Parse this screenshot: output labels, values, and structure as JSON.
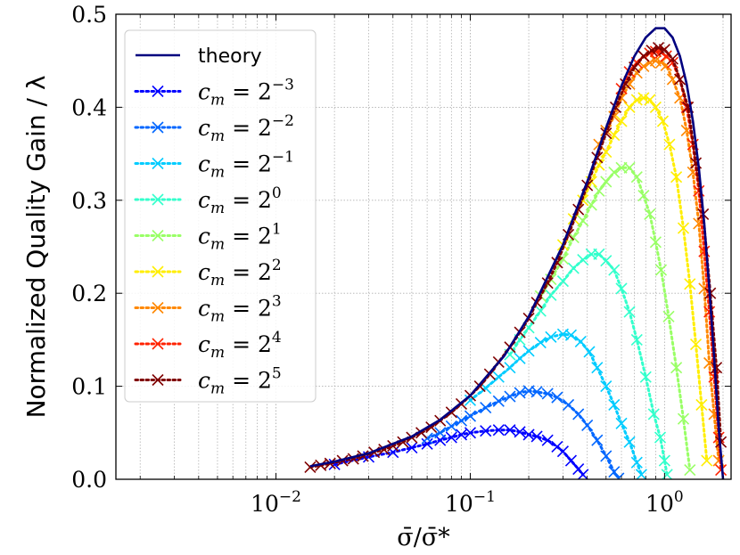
{
  "chart_data": {
    "type": "line",
    "title": "",
    "xlabel": "σ̄/σ̄*",
    "ylabel": "Normalized Quality Gain / λ",
    "xscale": "log",
    "xlim": [
      0.0015,
      2.2
    ],
    "ylim": [
      0.0,
      0.5
    ],
    "grid": true,
    "legend_position": "top-left",
    "x_ticks": [
      {
        "value": 0.01,
        "base": "10",
        "exp": "−2"
      },
      {
        "value": 0.1,
        "base": "10",
        "exp": "−1"
      },
      {
        "value": 1,
        "base": "10",
        "exp": "0"
      }
    ],
    "y_ticks": [
      {
        "value": 0.0,
        "label": "0.0"
      },
      {
        "value": 0.1,
        "label": "0.1"
      },
      {
        "value": 0.2,
        "label": "0.2"
      },
      {
        "value": 0.3,
        "label": "0.3"
      },
      {
        "value": 0.4,
        "label": "0.4"
      },
      {
        "value": 0.5,
        "label": "0.5"
      }
    ],
    "theory": {
      "name": "theory",
      "color": "#00007f",
      "x": [
        0.015,
        0.02,
        0.03,
        0.05,
        0.07,
        0.1,
        0.15,
        0.2,
        0.3,
        0.4,
        0.5,
        0.6,
        0.7,
        0.8,
        0.9,
        1.0,
        1.1,
        1.2,
        1.3,
        1.4,
        1.5,
        1.6,
        1.7,
        1.8,
        1.9,
        2.0
      ],
      "y": [
        0.014,
        0.019,
        0.028,
        0.046,
        0.064,
        0.09,
        0.133,
        0.175,
        0.252,
        0.32,
        0.378,
        0.423,
        0.455,
        0.475,
        0.485,
        0.485,
        0.475,
        0.455,
        0.425,
        0.385,
        0.335,
        0.275,
        0.205,
        0.13,
        0.055,
        0.0
      ]
    },
    "series": [
      {
        "name": "c_m = 2^{-3}",
        "base": "2",
        "exp": "−3",
        "color": "#0000ff",
        "x": [
          0.02,
          0.03,
          0.04,
          0.05,
          0.06,
          0.07,
          0.08,
          0.09,
          0.1,
          0.12,
          0.14,
          0.16,
          0.18,
          0.2,
          0.22,
          0.25,
          0.28,
          0.3,
          0.33,
          0.36,
          0.38
        ],
        "y": [
          0.016,
          0.024,
          0.029,
          0.034,
          0.038,
          0.042,
          0.045,
          0.048,
          0.05,
          0.052,
          0.053,
          0.053,
          0.051,
          0.048,
          0.046,
          0.042,
          0.035,
          0.03,
          0.02,
          0.011,
          0.005
        ]
      },
      {
        "name": "c_m = 2^{-2}",
        "base": "2",
        "exp": "−2",
        "color": "#0066ff",
        "x": [
          0.06,
          0.07,
          0.08,
          0.09,
          0.1,
          0.12,
          0.14,
          0.16,
          0.18,
          0.2,
          0.22,
          0.25,
          0.28,
          0.32,
          0.36,
          0.4,
          0.45,
          0.5,
          0.55,
          0.58
        ],
        "y": [
          0.044,
          0.05,
          0.057,
          0.063,
          0.068,
          0.077,
          0.084,
          0.089,
          0.093,
          0.095,
          0.094,
          0.092,
          0.088,
          0.08,
          0.07,
          0.058,
          0.042,
          0.025,
          0.008,
          0.001
        ]
      },
      {
        "name": "c_m = 2^{-1}",
        "base": "2",
        "exp": "−1",
        "color": "#00ccff",
        "x": [
          0.1,
          0.12,
          0.14,
          0.16,
          0.18,
          0.2,
          0.23,
          0.26,
          0.3,
          0.33,
          0.37,
          0.41,
          0.45,
          0.5,
          0.55,
          0.6,
          0.66,
          0.72,
          0.76
        ],
        "y": [
          0.085,
          0.098,
          0.11,
          0.12,
          0.13,
          0.138,
          0.147,
          0.153,
          0.156,
          0.155,
          0.148,
          0.137,
          0.12,
          0.1,
          0.08,
          0.06,
          0.04,
          0.018,
          0.005
        ]
      },
      {
        "name": "c_m = 2^0",
        "base": "2",
        "exp": "0",
        "color": "#33ffcc",
        "x": [
          0.16,
          0.18,
          0.2,
          0.23,
          0.26,
          0.3,
          0.34,
          0.38,
          0.42,
          0.46,
          0.5,
          0.55,
          0.6,
          0.66,
          0.72,
          0.8,
          0.88,
          0.95,
          1.0,
          1.03
        ],
        "y": [
          0.134,
          0.15,
          0.163,
          0.181,
          0.198,
          0.213,
          0.227,
          0.236,
          0.242,
          0.242,
          0.235,
          0.225,
          0.205,
          0.18,
          0.15,
          0.11,
          0.07,
          0.045,
          0.02,
          0.005
        ]
      },
      {
        "name": "c_m = 2^1",
        "base": "2",
        "exp": "1",
        "color": "#99ff66",
        "x": [
          0.23,
          0.26,
          0.3,
          0.34,
          0.38,
          0.42,
          0.46,
          0.5,
          0.55,
          0.6,
          0.66,
          0.72,
          0.78,
          0.84,
          0.9,
          0.96,
          1.05,
          1.15,
          1.25,
          1.35
        ],
        "y": [
          0.197,
          0.215,
          0.237,
          0.26,
          0.278,
          0.295,
          0.31,
          0.32,
          0.33,
          0.335,
          0.335,
          0.325,
          0.305,
          0.285,
          0.255,
          0.225,
          0.175,
          0.12,
          0.065,
          0.01
        ]
      },
      {
        "name": "c_m = 2^2",
        "base": "2",
        "exp": "2",
        "color": "#ffee00",
        "x": [
          0.3,
          0.34,
          0.38,
          0.42,
          0.46,
          0.5,
          0.55,
          0.6,
          0.66,
          0.72,
          0.78,
          0.84,
          0.9,
          0.98,
          1.06,
          1.15,
          1.25,
          1.35,
          1.45,
          1.55,
          1.65
        ],
        "y": [
          0.252,
          0.28,
          0.3,
          0.32,
          0.338,
          0.352,
          0.37,
          0.385,
          0.4,
          0.408,
          0.41,
          0.408,
          0.4,
          0.385,
          0.36,
          0.325,
          0.27,
          0.21,
          0.145,
          0.08,
          0.02
        ]
      },
      {
        "name": "c_m = 2^3",
        "base": "2",
        "exp": "3",
        "color": "#ff8800",
        "x": [
          0.46,
          0.5,
          0.55,
          0.6,
          0.66,
          0.72,
          0.78,
          0.84,
          0.9,
          0.96,
          1.02,
          1.1,
          1.2,
          1.3,
          1.4,
          1.5,
          1.6,
          1.7,
          1.8,
          1.9
        ],
        "y": [
          0.36,
          0.375,
          0.39,
          0.41,
          0.425,
          0.437,
          0.444,
          0.448,
          0.45,
          0.448,
          0.445,
          0.43,
          0.41,
          0.375,
          0.33,
          0.275,
          0.205,
          0.125,
          0.07,
          0.02
        ]
      },
      {
        "name": "c_m = 2^4",
        "base": "2",
        "exp": "4",
        "color": "#ff2200",
        "x": [
          0.6,
          0.66,
          0.72,
          0.78,
          0.84,
          0.9,
          0.96,
          1.02,
          1.1,
          1.2,
          1.3,
          1.4,
          1.5,
          1.6,
          1.7,
          1.8,
          1.9,
          1.95
        ],
        "y": [
          0.42,
          0.438,
          0.448,
          0.455,
          0.458,
          0.46,
          0.459,
          0.455,
          0.448,
          0.43,
          0.4,
          0.36,
          0.31,
          0.245,
          0.18,
          0.11,
          0.045,
          0.01
        ]
      },
      {
        "name": "c_m = 2^5",
        "base": "2",
        "exp": "5",
        "color": "#7f0000",
        "x": [
          0.015,
          0.017,
          0.019,
          0.022,
          0.025,
          0.028,
          0.032,
          0.036,
          0.04,
          0.045,
          0.05,
          0.056,
          0.063,
          0.07,
          0.08,
          0.09,
          0.1,
          0.112,
          0.126,
          0.14,
          0.16,
          0.18,
          0.2,
          0.22,
          0.25,
          0.28,
          0.32,
          0.36,
          0.4,
          0.45,
          0.5,
          0.56,
          0.63,
          0.7,
          0.78,
          0.86,
          0.93,
          1.0,
          1.1,
          1.2,
          1.32,
          1.45,
          1.58,
          1.72,
          1.85,
          1.95
        ],
        "y": [
          0.013,
          0.015,
          0.017,
          0.02,
          0.022,
          0.025,
          0.029,
          0.032,
          0.036,
          0.04,
          0.045,
          0.05,
          0.056,
          0.063,
          0.072,
          0.081,
          0.09,
          0.1,
          0.113,
          0.126,
          0.142,
          0.158,
          0.173,
          0.19,
          0.211,
          0.233,
          0.263,
          0.29,
          0.316,
          0.346,
          0.372,
          0.4,
          0.425,
          0.443,
          0.455,
          0.461,
          0.464,
          0.462,
          0.452,
          0.43,
          0.4,
          0.34,
          0.285,
          0.2,
          0.12,
          0.04
        ]
      }
    ]
  }
}
